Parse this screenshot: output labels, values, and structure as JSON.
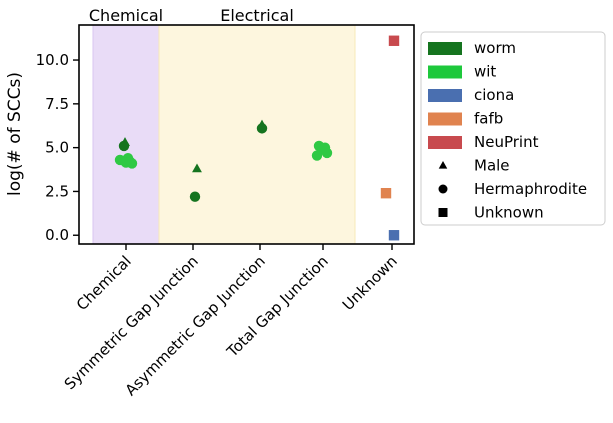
{
  "chart_data": {
    "type": "scatter",
    "title": "",
    "xlabel": "",
    "ylabel": "log(# of SCCs)",
    "ylim": [
      -0.5,
      12
    ],
    "yticks": [
      0.0,
      2.5,
      5.0,
      7.5,
      10.0
    ],
    "ytick_labels": [
      "0.0",
      "2.5",
      "5.0",
      "7.5",
      "10.0"
    ],
    "categories": [
      "Chemical",
      "Symmetric Gap Junction",
      "Asymmetric Gap Junction",
      "Total Gap Junction",
      "Unknown"
    ],
    "regions": [
      {
        "label": "Chemical",
        "from": "Chemical",
        "to": "Chemical",
        "color": "#e9dcf7"
      },
      {
        "label": "Electrical",
        "from": "Symmetric Gap Junction",
        "to": "Total Gap Junction",
        "color": "#fdf6de"
      }
    ],
    "legend_position": "outside-right",
    "legend": [
      {
        "label": "worm",
        "kind": "patch",
        "color": "#15741f"
      },
      {
        "label": "wit",
        "kind": "patch",
        "color": "#1ec83c"
      },
      {
        "label": "ciona",
        "kind": "patch",
        "color": "#4a6fb0"
      },
      {
        "label": "fafb",
        "kind": "patch",
        "color": "#e0834f"
      },
      {
        "label": "NeuPrint",
        "kind": "patch",
        "color": "#c84a4e"
      },
      {
        "label": "Male",
        "kind": "marker",
        "marker": "triangle"
      },
      {
        "label": "Hermaphrodite",
        "kind": "marker",
        "marker": "circle"
      },
      {
        "label": "Unknown",
        "kind": "marker",
        "marker": "square"
      }
    ],
    "series": [
      {
        "dataset": "worm",
        "color": "#15741f",
        "points": [
          {
            "x": "Chemical",
            "y": 5.3,
            "marker": "triangle"
          },
          {
            "x": "Chemical",
            "y": 5.1,
            "marker": "circle"
          },
          {
            "x": "Symmetric Gap Junction",
            "y": 3.8,
            "marker": "triangle"
          },
          {
            "x": "Symmetric Gap Junction",
            "y": 2.2,
            "marker": "circle"
          },
          {
            "x": "Asymmetric Gap Junction",
            "y": 6.3,
            "marker": "triangle"
          },
          {
            "x": "Asymmetric Gap Junction",
            "y": 6.1,
            "marker": "circle"
          }
        ]
      },
      {
        "dataset": "wit",
        "color": "#2fc944",
        "points": [
          {
            "x": "Chemical",
            "y": 4.3,
            "marker": "circle"
          },
          {
            "x": "Chemical",
            "y": 4.25,
            "marker": "circle"
          },
          {
            "x": "Chemical",
            "y": 4.4,
            "marker": "circle"
          },
          {
            "x": "Chemical",
            "y": 4.15,
            "marker": "circle"
          },
          {
            "x": "Chemical",
            "y": 4.2,
            "marker": "circle"
          },
          {
            "x": "Chemical",
            "y": 4.1,
            "marker": "circle"
          },
          {
            "x": "Total Gap Junction",
            "y": 5.1,
            "marker": "circle"
          },
          {
            "x": "Total Gap Junction",
            "y": 4.9,
            "marker": "circle"
          },
          {
            "x": "Total Gap Junction",
            "y": 4.7,
            "marker": "circle"
          },
          {
            "x": "Total Gap Junction",
            "y": 4.55,
            "marker": "circle"
          },
          {
            "x": "Total Gap Junction",
            "y": 5.0,
            "marker": "circle"
          }
        ]
      },
      {
        "dataset": "ciona",
        "color": "#4a6fb0",
        "points": [
          {
            "x": "Unknown",
            "y": 0.0,
            "marker": "square"
          }
        ]
      },
      {
        "dataset": "fafb",
        "color": "#e0834f",
        "points": [
          {
            "x": "Unknown",
            "y": 2.4,
            "marker": "square"
          }
        ]
      },
      {
        "dataset": "NeuPrint",
        "color": "#c84a4e",
        "points": [
          {
            "x": "Unknown",
            "y": 11.1,
            "marker": "square"
          }
        ]
      }
    ]
  }
}
